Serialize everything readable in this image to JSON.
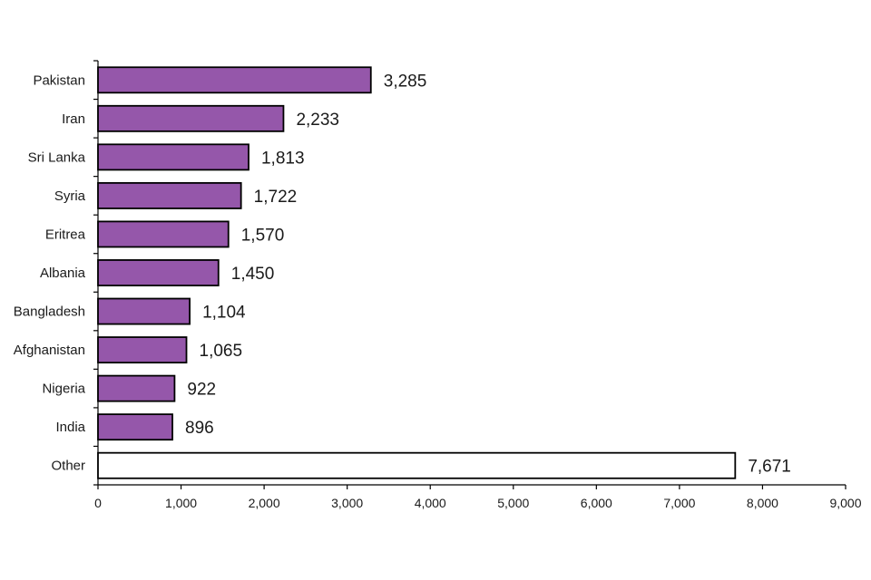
{
  "chart_data": {
    "type": "bar",
    "orientation": "horizontal",
    "categories": [
      "Pakistan",
      "Iran",
      "Sri Lanka",
      "Syria",
      "Eritrea",
      "Albania",
      "Bangladesh",
      "Afghanistan",
      "Nigeria",
      "India",
      "Other"
    ],
    "values": [
      3285,
      2233,
      1813,
      1722,
      1570,
      1450,
      1104,
      1065,
      922,
      896,
      7671
    ],
    "data_labels": [
      "3,285",
      "2,233",
      "1,813",
      "1,722",
      "1,570",
      "1,450",
      "1,104",
      "1,065",
      "922",
      "896",
      "7,671"
    ],
    "bar_colors": [
      "#9557aa",
      "#9557aa",
      "#9557aa",
      "#9557aa",
      "#9557aa",
      "#9557aa",
      "#9557aa",
      "#9557aa",
      "#9557aa",
      "#9557aa",
      "#ffffff"
    ],
    "xlim": [
      0,
      9000
    ],
    "xticks": [
      0,
      1000,
      2000,
      3000,
      4000,
      5000,
      6000,
      7000,
      8000,
      9000
    ],
    "xtick_labels": [
      "0",
      "1,000",
      "2,000",
      "3,000",
      "4,000",
      "5,000",
      "6,000",
      "7,000",
      "8,000",
      "9,000"
    ],
    "title": "",
    "xlabel": "",
    "ylabel": "",
    "grid": false,
    "legend": "none"
  }
}
